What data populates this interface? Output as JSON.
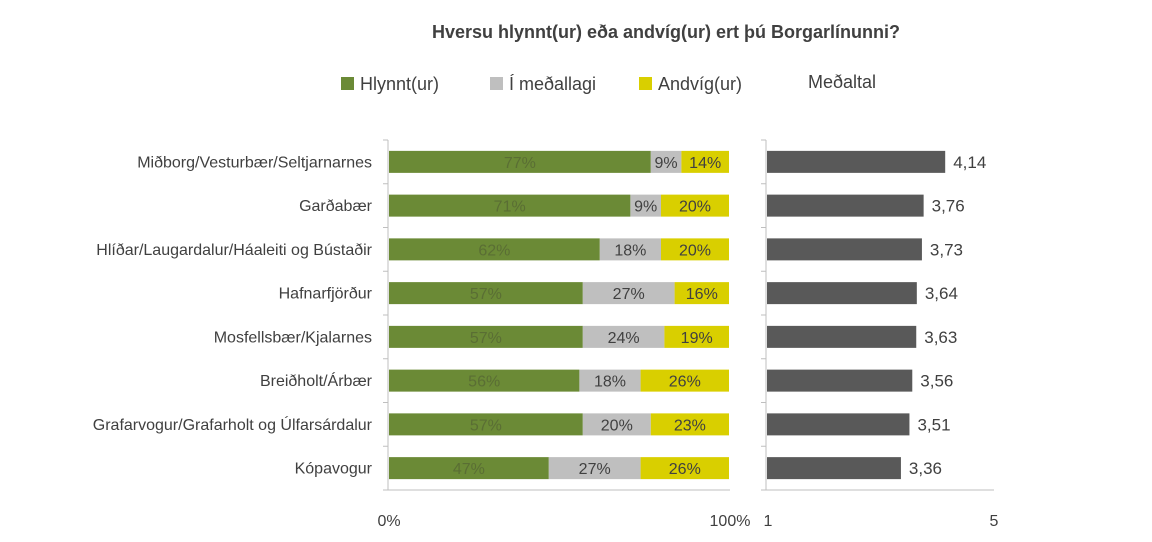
{
  "chart_data": {
    "type": "bar",
    "title": "Hversu hlynnt(ur) eða andvíg(ur) ert þú Borgarlínunni?",
    "categories": [
      "Miðborg/Vesturbær/Seltjarnarnes",
      "Garðabær",
      "Hlíðar/Laugardalur/Háaleiti og Bústaðir",
      "Hafnarfjörður",
      "Mosfellsbær/Kjalarnes",
      "Breiðholt/Árbær",
      "Grafarvogur/Grafarholt og Úlfarsárdalur",
      "Kópavogur"
    ],
    "series": [
      {
        "name": "Hlynnt(ur)",
        "color": "#6b8a36",
        "label_color": "#5a6e34",
        "values": [
          77,
          71,
          62,
          57,
          57,
          56,
          57,
          47
        ]
      },
      {
        "name": "Í meðallagi",
        "color": "#bfbfbf",
        "label_color": "#404040",
        "values": [
          9,
          9,
          18,
          27,
          24,
          18,
          20,
          27
        ]
      },
      {
        "name": "Andvíg(ur)",
        "color": "#d9cf00",
        "label_color": "#404040",
        "values": [
          14,
          20,
          20,
          16,
          19,
          26,
          23,
          26
        ]
      }
    ],
    "percent_axis": {
      "ticks": [
        "0%",
        "100%"
      ]
    },
    "average": {
      "name": "Meðaltal",
      "color": "#595959",
      "values": [
        4.14,
        3.76,
        3.73,
        3.64,
        3.63,
        3.56,
        3.51,
        3.36
      ],
      "labels": [
        "4,14",
        "3,76",
        "3,73",
        "3,64",
        "3,63",
        "3,56",
        "3,51",
        "3,36"
      ],
      "xlim": [
        1,
        5
      ],
      "ticks": [
        "1",
        "5"
      ]
    },
    "legend_position": "top-center",
    "grid": false
  }
}
